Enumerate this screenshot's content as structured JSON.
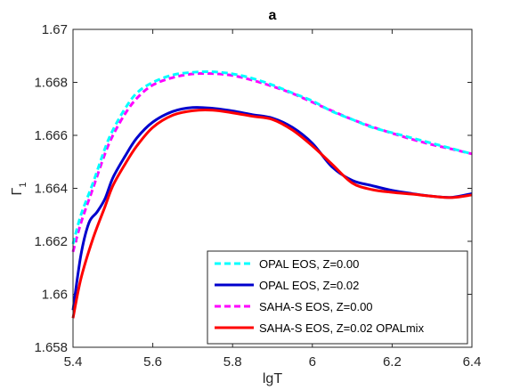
{
  "chart_data": {
    "type": "line",
    "title": "a",
    "xlabel": "lgT",
    "ylabel": "Γ",
    "ylabel_subscript": "1",
    "xlim": [
      5.4,
      6.4
    ],
    "ylim": [
      1.658,
      1.67
    ],
    "x_ticks": [
      "5.4",
      "5.6",
      "5.8",
      "6",
      "6.2",
      "6.4"
    ],
    "y_ticks": [
      "1.658",
      "1.66",
      "1.662",
      "1.664",
      "1.666",
      "1.668",
      "1.67"
    ],
    "grid": false,
    "legend_position": "bottom-right",
    "series": [
      {
        "name": "OPAL EOS, Z=0.00",
        "color": "#00FFFF",
        "style": "dashed",
        "x": [
          5.4,
          5.42,
          5.45,
          5.48,
          5.5,
          5.53,
          5.56,
          5.6,
          5.65,
          5.7,
          5.75,
          5.8,
          5.85,
          5.9,
          5.95,
          6.0,
          6.05,
          6.1,
          6.15,
          6.2,
          6.25,
          6.3,
          6.35,
          6.4
        ],
        "y": [
          1.6619,
          1.663,
          1.6642,
          1.6655,
          1.6662,
          1.667,
          1.6676,
          1.668,
          1.66828,
          1.66838,
          1.6684,
          1.66832,
          1.66815,
          1.6679,
          1.6676,
          1.6673,
          1.6669,
          1.6666,
          1.6663,
          1.6661,
          1.6659,
          1.6657,
          1.6655,
          1.6653
        ]
      },
      {
        "name": "OPAL EOS, Z=0.02",
        "color": "#0000CD",
        "style": "solid",
        "x": [
          5.4,
          5.42,
          5.44,
          5.46,
          5.48,
          5.5,
          5.53,
          5.56,
          5.6,
          5.65,
          5.7,
          5.75,
          5.8,
          5.85,
          5.9,
          5.95,
          6.0,
          6.05,
          6.1,
          6.15,
          6.2,
          6.25,
          6.3,
          6.35,
          6.4
        ],
        "y": [
          1.6594,
          1.6615,
          1.6627,
          1.6631,
          1.6636,
          1.6644,
          1.6652,
          1.6659,
          1.6665,
          1.6669,
          1.66705,
          1.66702,
          1.66692,
          1.66678,
          1.66665,
          1.6663,
          1.6657,
          1.6648,
          1.6643,
          1.6641,
          1.66392,
          1.6638,
          1.6637,
          1.66366,
          1.6638
        ]
      },
      {
        "name": "SAHA-S EOS, Z=0.00",
        "color": "#FF00FF",
        "style": "dashed",
        "x": [
          5.4,
          5.42,
          5.45,
          5.48,
          5.5,
          5.53,
          5.56,
          5.6,
          5.65,
          5.7,
          5.75,
          5.8,
          5.85,
          5.9,
          5.95,
          6.0,
          6.05,
          6.1,
          6.15,
          6.2,
          6.25,
          6.3,
          6.35,
          6.4
        ],
        "y": [
          1.6616,
          1.6627,
          1.664,
          1.6653,
          1.666,
          1.6668,
          1.6674,
          1.6679,
          1.66818,
          1.66832,
          1.66833,
          1.66826,
          1.66808,
          1.66785,
          1.66758,
          1.66725,
          1.66692,
          1.6666,
          1.66632,
          1.66608,
          1.66585,
          1.66565,
          1.66548,
          1.6653
        ]
      },
      {
        "name": "SAHA-S EOS, Z=0.02 OPALmix",
        "color": "#FF0000",
        "style": "solid",
        "x": [
          5.4,
          5.42,
          5.45,
          5.48,
          5.5,
          5.53,
          5.56,
          5.6,
          5.65,
          5.7,
          5.75,
          5.8,
          5.85,
          5.9,
          5.95,
          6.0,
          6.05,
          6.1,
          6.15,
          6.2,
          6.25,
          6.3,
          6.35,
          6.4
        ],
        "y": [
          1.6591,
          1.6606,
          1.6621,
          1.6633,
          1.6641,
          1.6649,
          1.6656,
          1.6663,
          1.66676,
          1.66693,
          1.66695,
          1.66685,
          1.66672,
          1.6666,
          1.6662,
          1.6656,
          1.6649,
          1.6642,
          1.66395,
          1.66385,
          1.66378,
          1.6637,
          1.66365,
          1.66375
        ]
      }
    ]
  }
}
